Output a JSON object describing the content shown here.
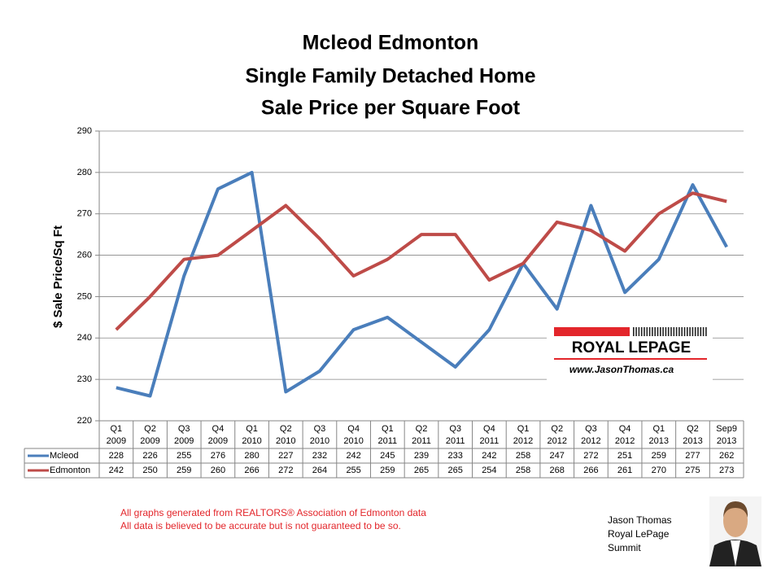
{
  "chart_data": {
    "type": "line",
    "title": [
      "Mcleod Edmonton",
      "Single Family Detached Home",
      "Sale Price per Square Foot"
    ],
    "y_label": "$ Sale Price/Sq Ft",
    "categories": [
      [
        "Q1",
        "2009"
      ],
      [
        "Q2",
        "2009"
      ],
      [
        "Q3",
        "2009"
      ],
      [
        "Q4",
        "2009"
      ],
      [
        "Q1",
        "2010"
      ],
      [
        "Q2",
        "2010"
      ],
      [
        "Q3",
        "2010"
      ],
      [
        "Q4",
        "2010"
      ],
      [
        "Q1",
        "2011"
      ],
      [
        "Q2",
        "2011"
      ],
      [
        "Q3",
        "2011"
      ],
      [
        "Q4",
        "2011"
      ],
      [
        "Q1",
        "2012"
      ],
      [
        "Q2",
        "2012"
      ],
      [
        "Q3",
        "2012"
      ],
      [
        "Q4",
        "2012"
      ],
      [
        "Q1",
        "2013"
      ],
      [
        "Q2",
        "2013"
      ],
      [
        "Sep9",
        "2013"
      ]
    ],
    "series": [
      {
        "name": "Mcleod",
        "color": "#4a7ebb",
        "values": [
          228,
          226,
          255,
          276,
          280,
          227,
          232,
          242,
          245,
          239,
          233,
          242,
          258,
          247,
          272,
          251,
          259,
          277,
          262
        ]
      },
      {
        "name": "Edmonton",
        "color": "#be4b48",
        "values": [
          242,
          250,
          259,
          260,
          266,
          272,
          264,
          255,
          259,
          265,
          265,
          254,
          258,
          268,
          266,
          261,
          270,
          275,
          273
        ]
      }
    ],
    "ylim": [
      220,
      290
    ],
    "yticks": [
      220,
      230,
      240,
      250,
      260,
      270,
      280,
      290
    ],
    "grid": true
  },
  "logo": {
    "text": "ROYAL LEPAGE",
    "url": "www.JasonThomas.ca"
  },
  "footer": [
    "All graphs generated from REALTORS® Association of Edmonton data",
    "All data is believed to be accurate but is not guaranteed to be so."
  ],
  "signature": [
    "Jason Thomas",
    "Royal LePage",
    "Summit"
  ]
}
